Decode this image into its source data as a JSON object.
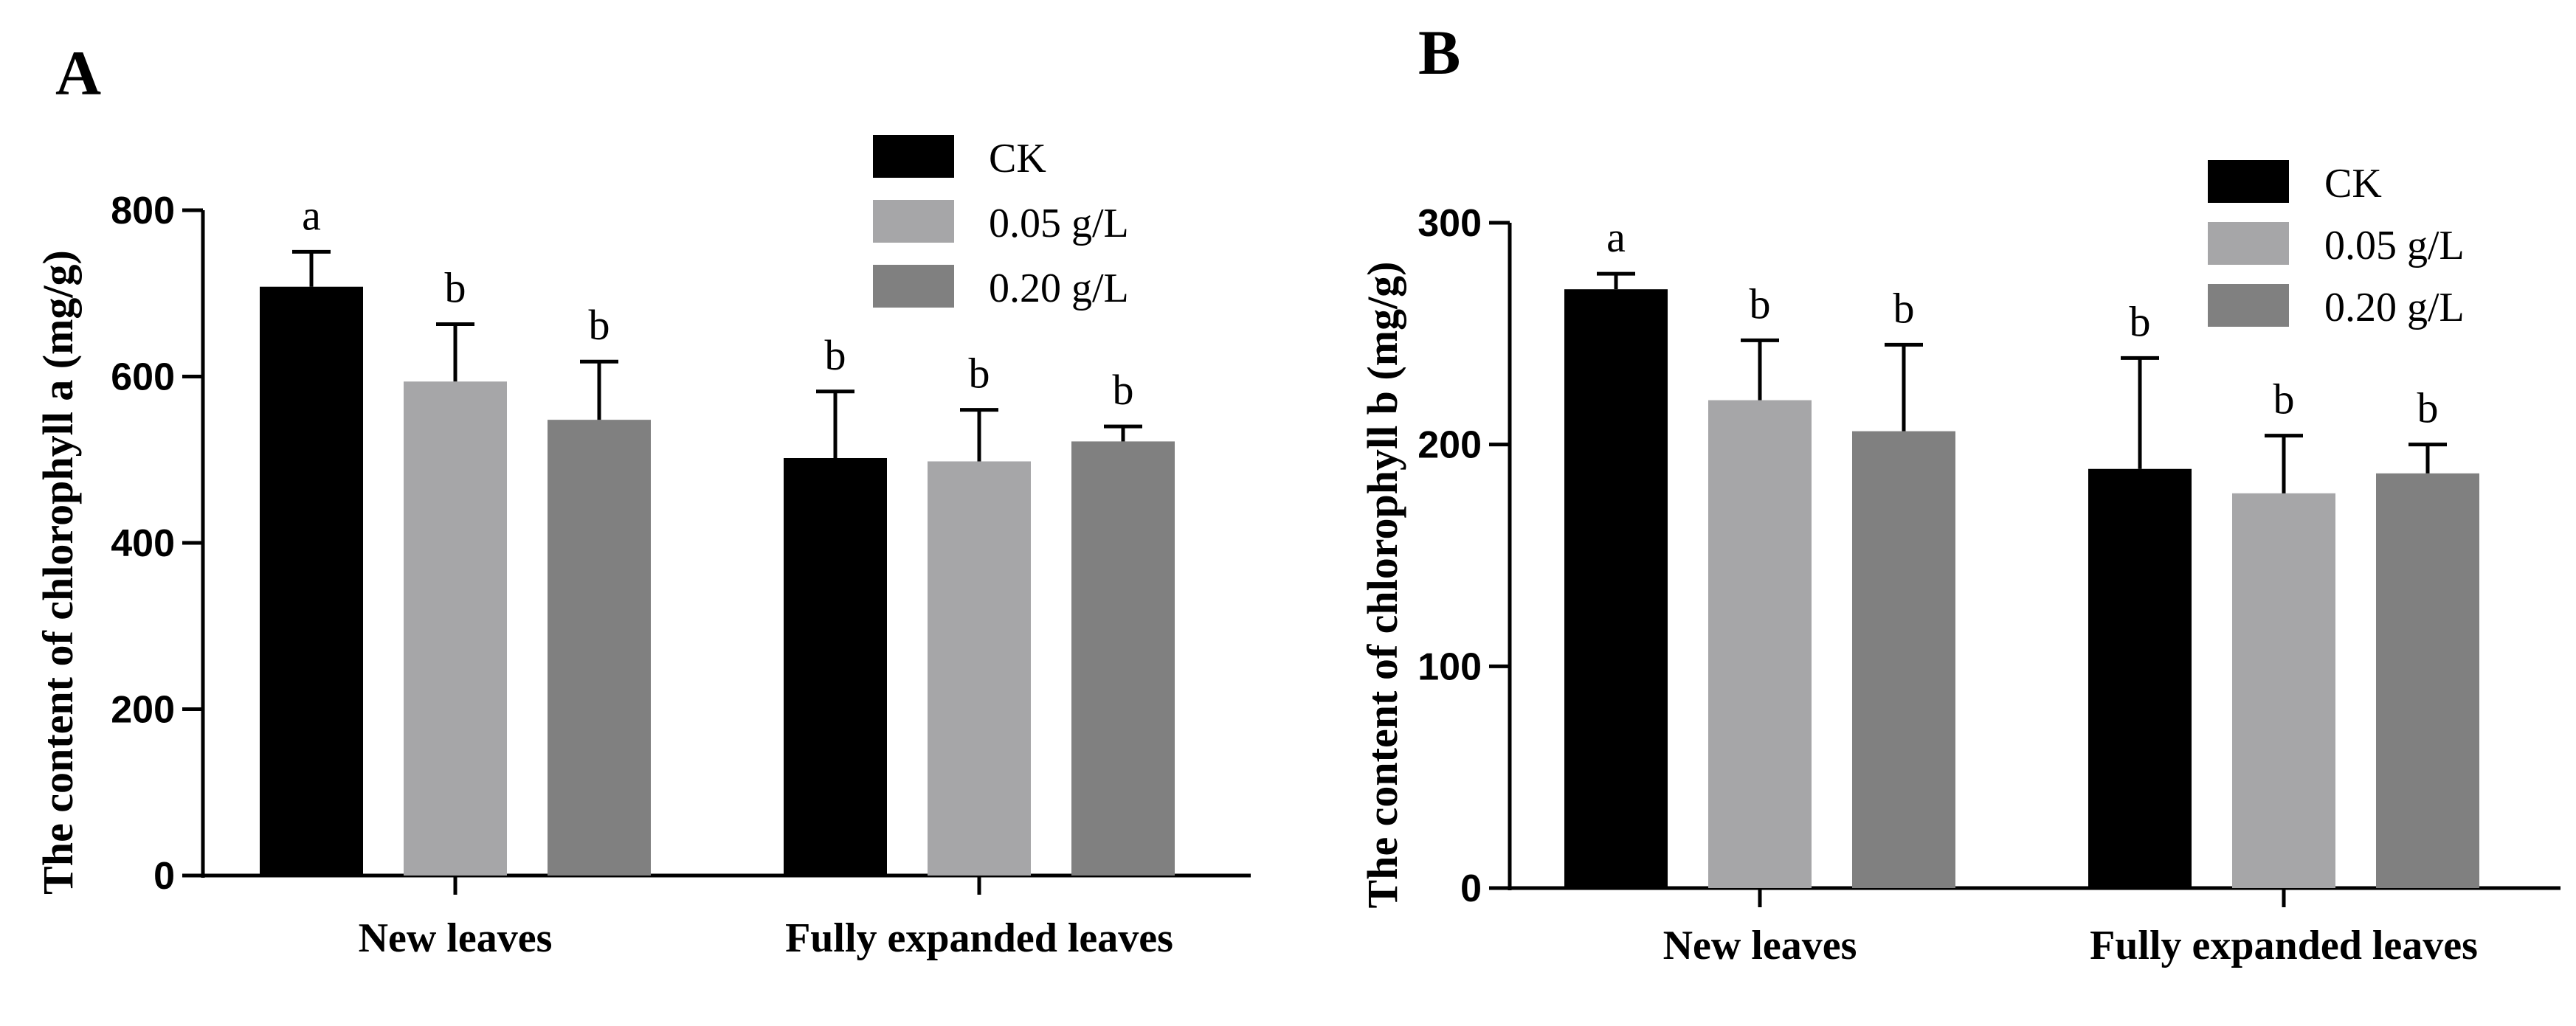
{
  "colors": {
    "CK": "#000000",
    "0.05 g/L": "#a6a6a8",
    "0.20 g/L": "#808080"
  },
  "chart_data": [
    {
      "panel": "A",
      "type": "bar",
      "ylabel": "The content of chlorophyll a (mg/g)",
      "ylim": [
        0,
        800
      ],
      "yticks": [
        0,
        200,
        400,
        600,
        800
      ],
      "categories": [
        "New leaves",
        "Fully expanded leaves"
      ],
      "legend": [
        "CK",
        "0.05 g/L",
        "0.20 g/L"
      ],
      "series": [
        {
          "name": "CK",
          "values": [
            708,
            502
          ],
          "errors": [
            42,
            80
          ],
          "letters": [
            "a",
            "b"
          ]
        },
        {
          "name": "0.05 g/L",
          "values": [
            594,
            498
          ],
          "errors": [
            69,
            62
          ],
          "letters": [
            "b",
            "b"
          ]
        },
        {
          "name": "0.20 g/L",
          "values": [
            548,
            522
          ],
          "errors": [
            70,
            18
          ],
          "letters": [
            "b",
            "b"
          ]
        }
      ]
    },
    {
      "panel": "B",
      "type": "bar",
      "ylabel": "The content of chlorophyll b (mg/g)",
      "ylim": [
        0,
        300
      ],
      "yticks": [
        0,
        100,
        200,
        300
      ],
      "categories": [
        "New leaves",
        "Fully expanded leaves"
      ],
      "legend": [
        "CK",
        "0.05 g/L",
        "0.20 g/L"
      ],
      "series": [
        {
          "name": "CK",
          "values": [
            270,
            189
          ],
          "errors": [
            7,
            50
          ],
          "letters": [
            "a",
            "b"
          ]
        },
        {
          "name": "0.05 g/L",
          "values": [
            220,
            178
          ],
          "errors": [
            27,
            26
          ],
          "letters": [
            "b",
            "b"
          ]
        },
        {
          "name": "0.20 g/L",
          "values": [
            206,
            187
          ],
          "errors": [
            39,
            13
          ],
          "letters": [
            "b",
            "b"
          ]
        }
      ]
    }
  ]
}
